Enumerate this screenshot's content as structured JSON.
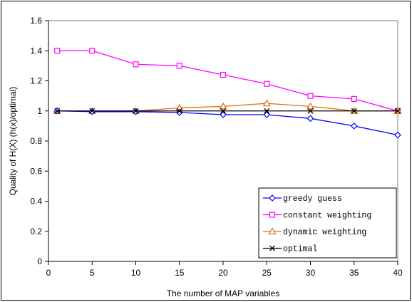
{
  "chart_data": {
    "type": "line",
    "title": "",
    "xlabel": "The number of MAP variables",
    "ylabel": "Quality of H(X) (h(x)/optimal)",
    "x": [
      1,
      5,
      10,
      15,
      20,
      25,
      30,
      35,
      40
    ],
    "xlim": [
      0,
      40
    ],
    "ylim": [
      0,
      1.6
    ],
    "x_ticks": [
      "0",
      "5",
      "10",
      "15",
      "20",
      "25",
      "30",
      "35",
      "40"
    ],
    "y_ticks": [
      "0",
      "0.2",
      "0.4",
      "0.6",
      "0.8",
      "1",
      "1.2",
      "1.4",
      "1.6"
    ],
    "grid": false,
    "legend_position": "bottom-right",
    "series": [
      {
        "name": "greedy guess",
        "color": "#0000ff",
        "marker": "diamond",
        "values": [
          1.0,
          0.995,
          0.995,
          0.99,
          0.975,
          0.975,
          0.95,
          0.9,
          0.84
        ]
      },
      {
        "name": "constant weighting",
        "color": "#ff00ff",
        "marker": "square",
        "values": [
          1.4,
          1.4,
          1.31,
          1.3,
          1.24,
          1.18,
          1.1,
          1.08,
          1.0
        ]
      },
      {
        "name": "dynamic weighting",
        "color": "#e46c0a",
        "marker": "triangle",
        "values": [
          1.0,
          1.0,
          1.0,
          1.02,
          1.03,
          1.05,
          1.03,
          1.0,
          1.0
        ]
      },
      {
        "name": "optimal",
        "color": "#000000",
        "marker": "x",
        "values": [
          1.0,
          1.0,
          1.0,
          1.0,
          1.0,
          1.0,
          1.0,
          1.0,
          1.0
        ]
      }
    ]
  }
}
